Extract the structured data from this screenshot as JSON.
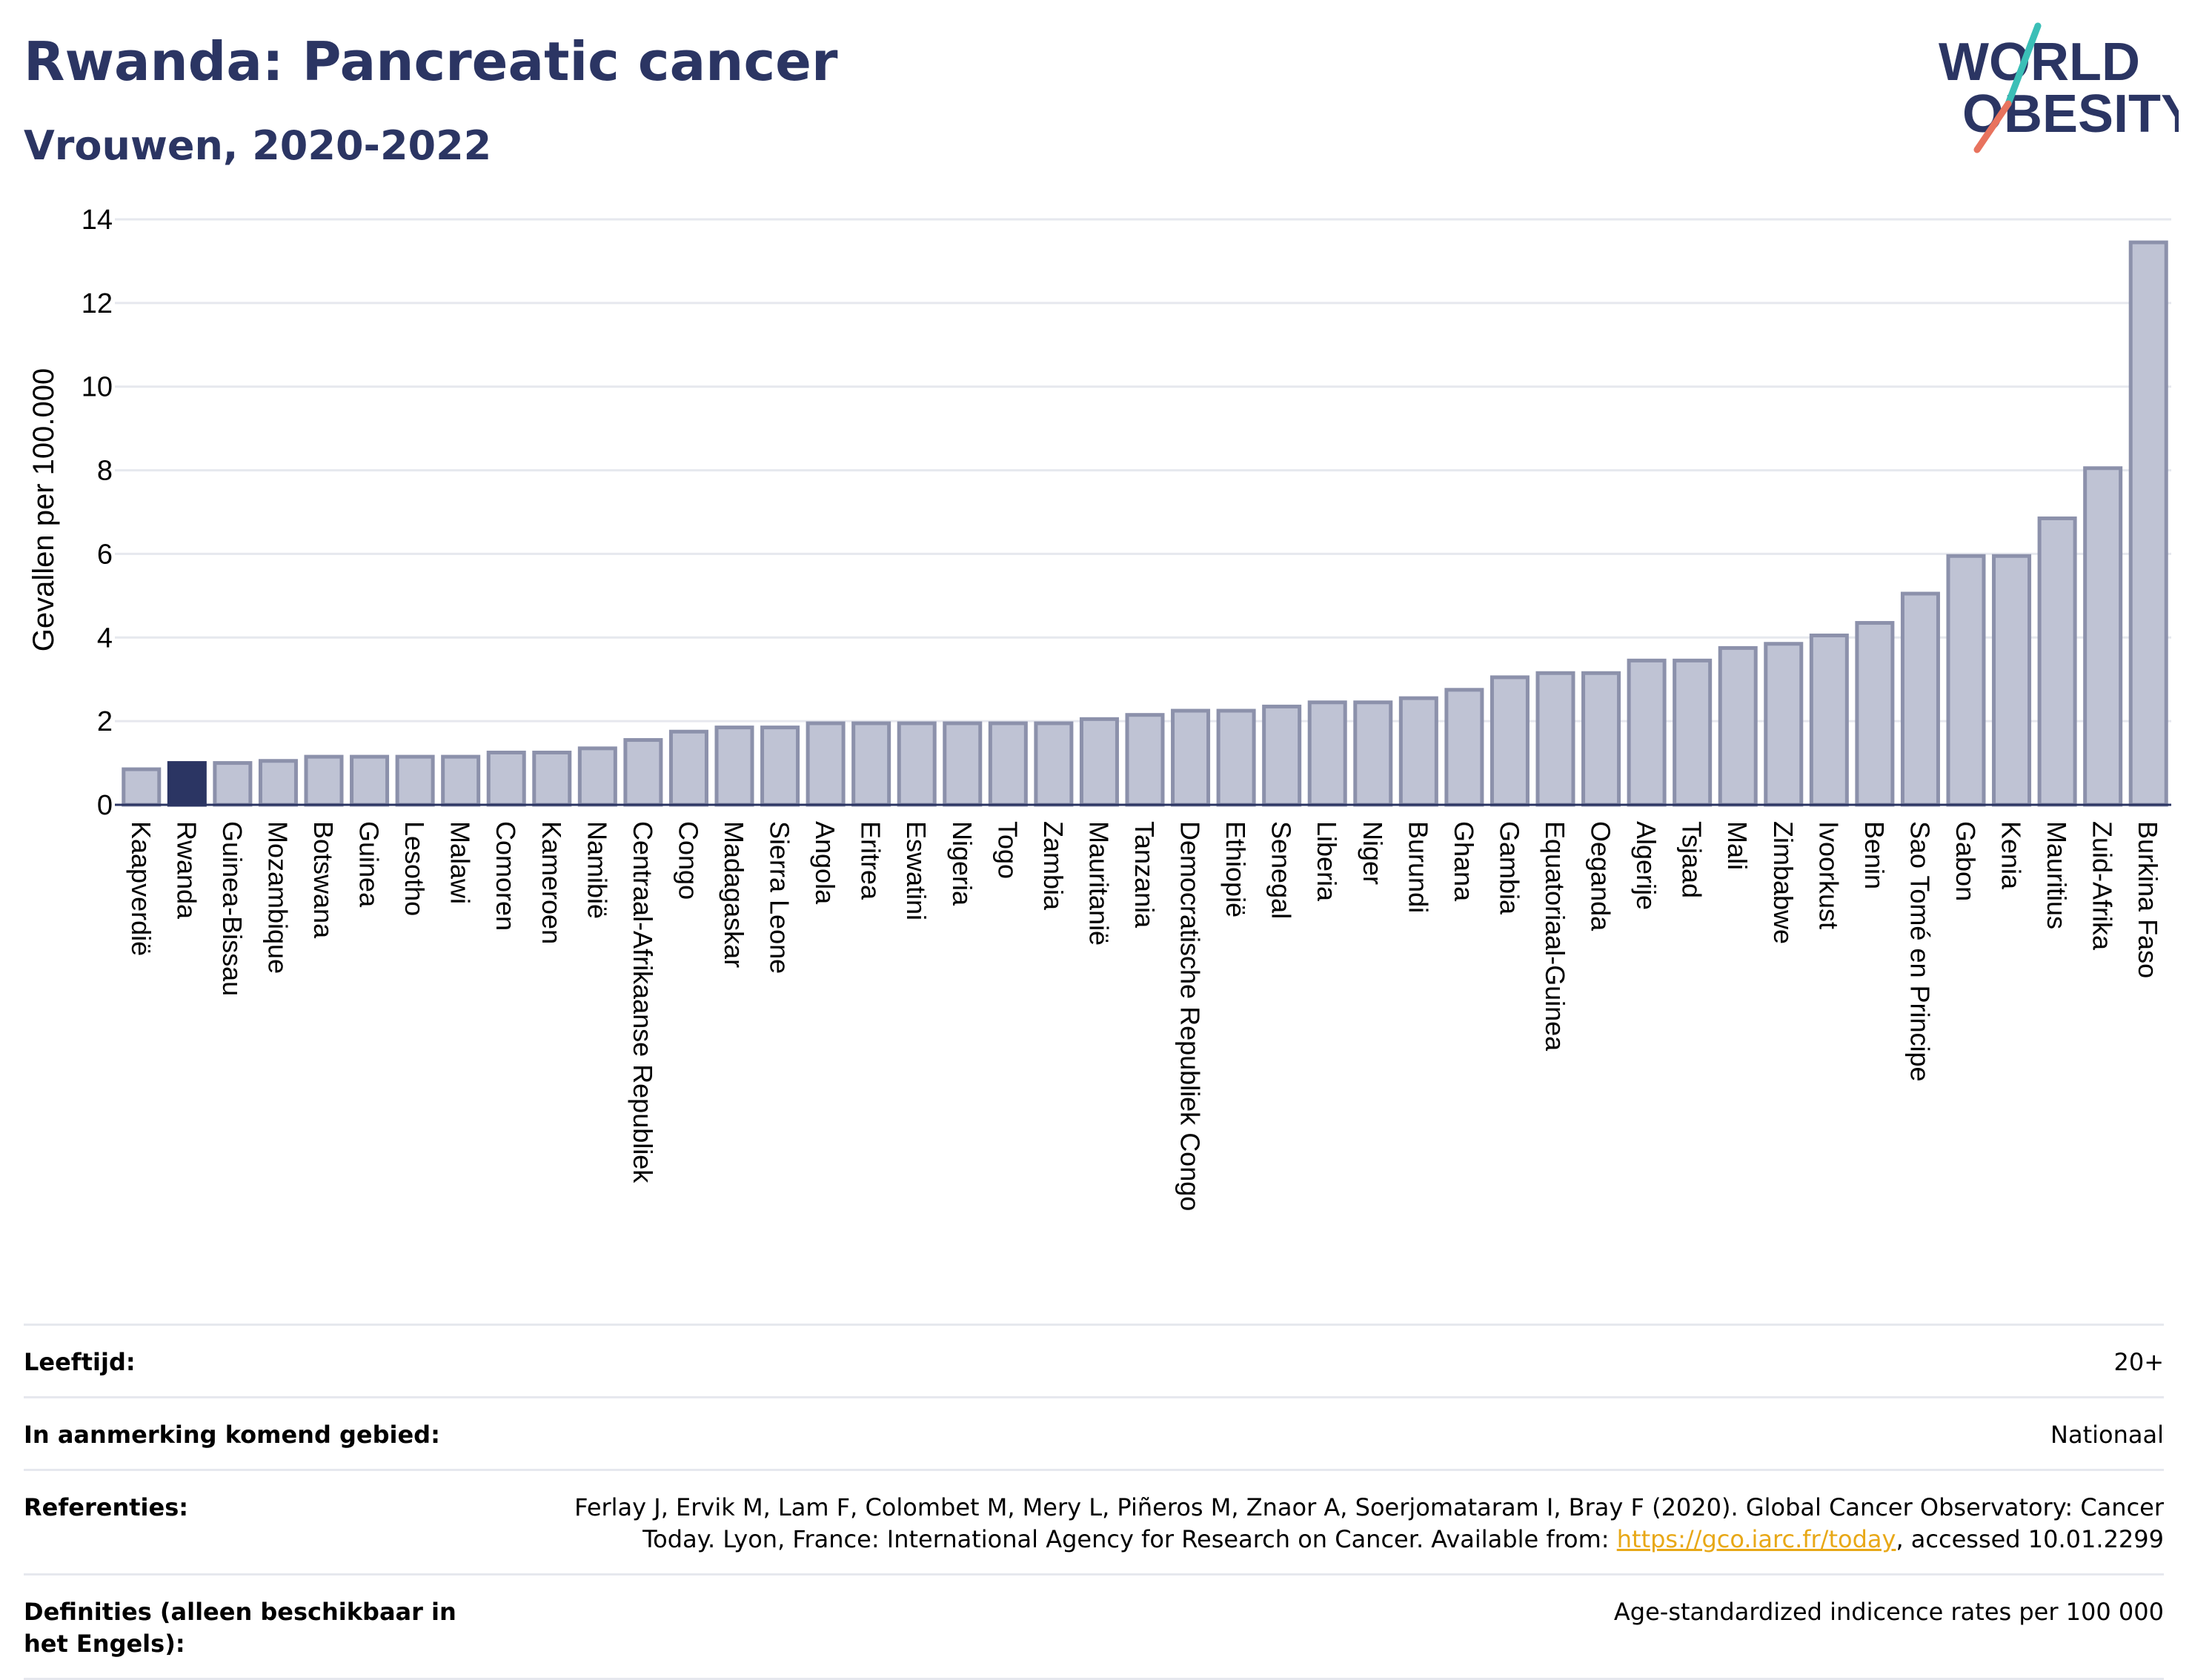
{
  "header": {
    "title": "Rwanda: Pancreatic cancer",
    "subtitle": "Vrouwen, 2020-2022",
    "logo_line1": "WORLD",
    "logo_line2": "OBESITY"
  },
  "colors": {
    "title": "#2b3563",
    "bar_fill": "#bfc3d4",
    "bar_stroke": "#8c91ab",
    "highlight": "#2b3563",
    "grid": "#e6e8ee",
    "link": "#e8a817",
    "logo_teal": "#3bbfb7",
    "logo_coral": "#e8735e"
  },
  "chart_data": {
    "type": "bar",
    "ylabel": "Gevallen per 100.000",
    "ylim": [
      0,
      14
    ],
    "yticks": [
      0,
      2,
      4,
      6,
      8,
      10,
      12,
      14
    ],
    "grid": true,
    "highlight_category": "Rwanda",
    "categories": [
      "Kaapverdië",
      "Rwanda",
      "Guinea-Bissau",
      "Mozambique",
      "Botswana",
      "Guinea",
      "Lesotho",
      "Malawi",
      "Comoren",
      "Kameroen",
      "Namibië",
      "Centraal-Afrikaanse Republiek",
      "Congo",
      "Madagaskar",
      "Sierra Leone",
      "Angola",
      "Eritrea",
      "Eswatini",
      "Nigeria",
      "Togo",
      "Zambia",
      "Mauritanië",
      "Tanzania",
      "Democratische Republiek Congo",
      "Ethiopië",
      "Senegal",
      "Liberia",
      "Niger",
      "Burundi",
      "Ghana",
      "Gambia",
      "Equatoriaal-Guinea",
      "Oeganda",
      "Algerije",
      "Tsjaad",
      "Mali",
      "Zimbabwe",
      "Ivoorkust",
      "Benin",
      "Sao Tomé en Principe",
      "Gabon",
      "Kenia",
      "Mauritius",
      "Zuid-Afrika",
      "Burkina Faso"
    ],
    "values": [
      0.85,
      1.0,
      1.0,
      1.05,
      1.15,
      1.15,
      1.15,
      1.15,
      1.25,
      1.25,
      1.35,
      1.55,
      1.75,
      1.85,
      1.85,
      1.95,
      1.95,
      1.95,
      1.95,
      1.95,
      1.95,
      2.05,
      2.15,
      2.25,
      2.25,
      2.35,
      2.45,
      2.45,
      2.55,
      2.75,
      3.05,
      3.15,
      3.15,
      3.45,
      3.45,
      3.75,
      3.85,
      4.05,
      4.35,
      5.05,
      5.95,
      5.95,
      6.85,
      8.05,
      13.45
    ]
  },
  "info": [
    {
      "label": "Leeftijd:",
      "value": "20+"
    },
    {
      "label": "In aanmerking komend gebied:",
      "value": "Nationaal"
    },
    {
      "label": "Referenties:",
      "value_pre": "Ferlay J, Ervik M, Lam F, Colombet M, Mery L, Piñeros M, Znaor A, Soerjomataram I, Bray F (2020). Global Cancer Observatory: Cancer Today. Lyon, France: International Agency for Research on Cancer. Available from: ",
      "link": "https://gco.iarc.fr/today",
      "value_post": ", accessed 10.01.2299"
    },
    {
      "label": "Definities (alleen beschikbaar in het Engels):",
      "value": "Age-standardized indicence rates per 100 000"
    }
  ]
}
